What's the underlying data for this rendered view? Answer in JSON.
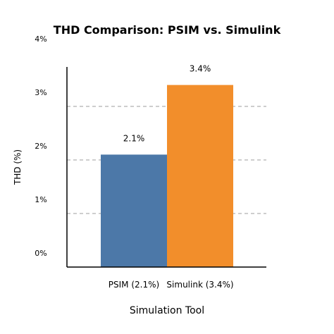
{
  "chart_data": {
    "type": "bar",
    "title": "THD Comparison: PSIM vs. Simulink",
    "xlabel": "Simulation Tool",
    "ylabel": "THD (%)",
    "categories": [
      "PSIM (2.1%)",
      "Simulink (3.4%)"
    ],
    "values": [
      2.1,
      3.4
    ],
    "value_labels": [
      "2.1%",
      "3.4%"
    ],
    "ylim": [
      0,
      4
    ],
    "yticks": [
      0,
      1,
      2,
      3,
      4
    ],
    "ytick_labels": [
      "0%",
      "1%",
      "2%",
      "3%",
      "4%"
    ],
    "grid": "horizontal dashed",
    "legend": "none",
    "colors": [
      "#4c78a8",
      "#f28e2b"
    ],
    "grid_color": "#b0b0b0",
    "axis_color": "#000000"
  }
}
